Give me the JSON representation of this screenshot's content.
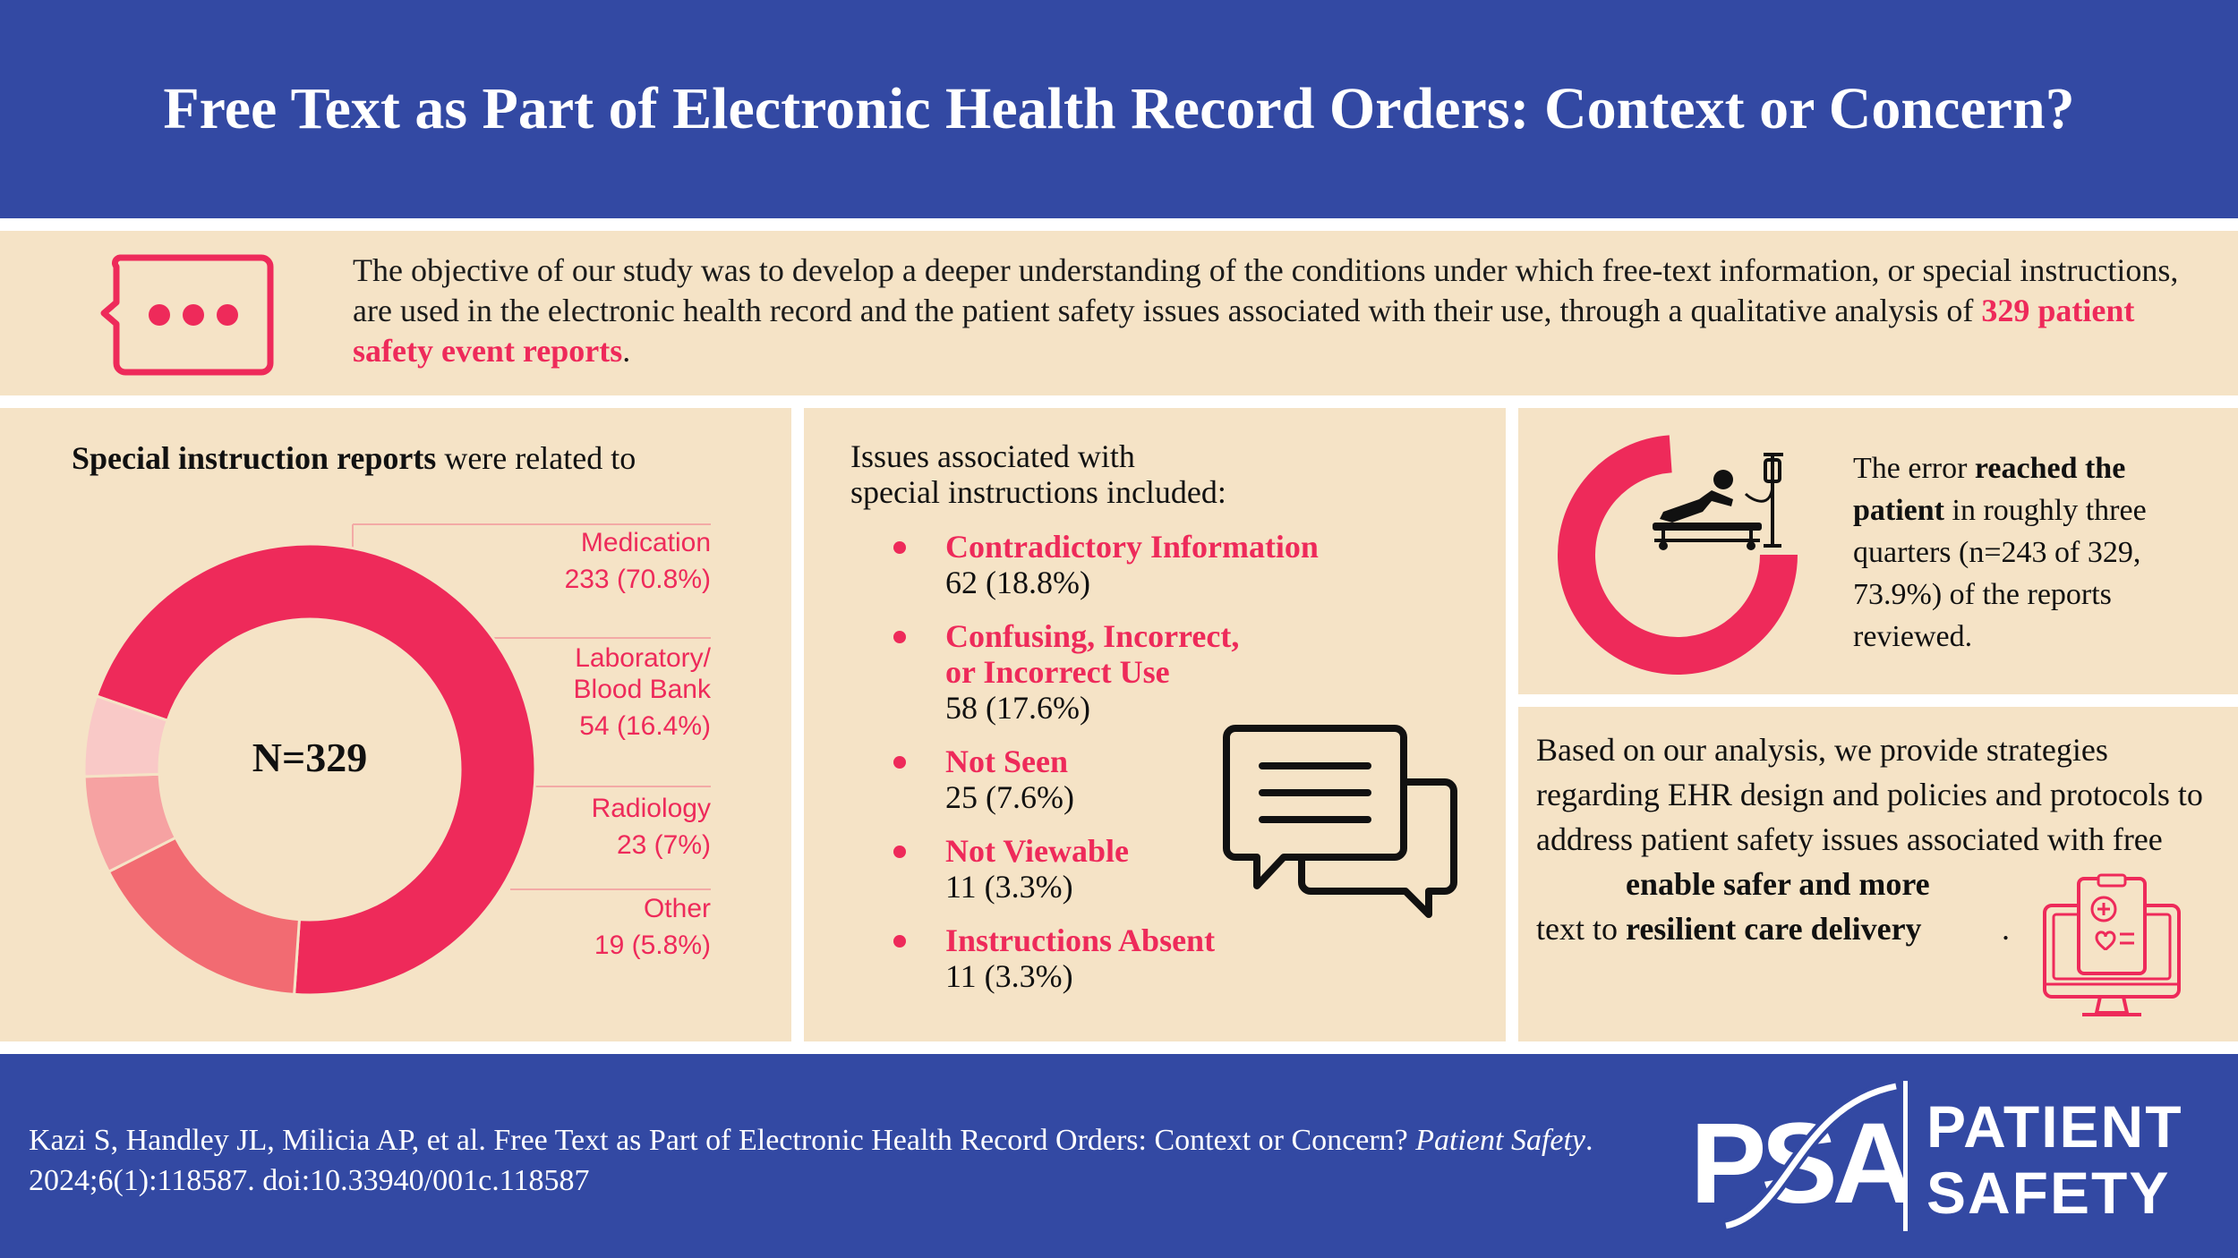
{
  "header": {
    "title": "Free Text as Part of Electronic Health Record Orders: Context or Concern?"
  },
  "objective": {
    "text_before": "The objective of our study was to develop a deeper understanding of the conditions under which free-text information, or special instructions, are used in the electronic health record and the patient safety issues associated with their use, through a qualitative analysis of ",
    "highlight": "329 patient safety event reports",
    "text_after": ".",
    "icon": "chat-bubble-icon"
  },
  "reports_panel": {
    "heading_bold": "Special instruction reports",
    "heading_rest": " were related to",
    "total_label": "N=329",
    "chart_data": {
      "type": "pie",
      "title": "Special instruction reports were related to",
      "center_label": "N=329",
      "categories": [
        "Medication",
        "Laboratory/ Blood Bank",
        "Radiology",
        "Other"
      ],
      "values": [
        233,
        54,
        23,
        19
      ],
      "percent_labels": [
        "233 (70.8%)",
        "54 (16.4%)",
        "23 (7%)",
        "19 (5.8%)"
      ],
      "colors": [
        "#ee2a5a",
        "#f26b72",
        "#f6a2a2",
        "#f9c9c7"
      ],
      "legend": "right"
    },
    "legend": [
      {
        "label": "Medication",
        "value": "233 (70.8%)"
      },
      {
        "label_line1": "Laboratory/",
        "label_line2": "Blood Bank",
        "value": "54 (16.4%)"
      },
      {
        "label": "Radiology",
        "value": "23 (7%)"
      },
      {
        "label": "Other",
        "value": "19 (5.8%)"
      }
    ]
  },
  "issues_panel": {
    "heading_line1": "Issues associated with",
    "heading_line2": "special instructions included:",
    "icon": "speech-bubbles-icon",
    "items": [
      {
        "name_line1": "Contradictory Information",
        "value": "62 (18.8%)"
      },
      {
        "name_line1": "Confusing, Incorrect,",
        "name_line2": "or Incorrect Use",
        "value": "58 (17.6%)"
      },
      {
        "name_line1": "Not Seen",
        "value": "25 (7.6%)"
      },
      {
        "name_line1": "Not Viewable",
        "value": "11 (3.3%)"
      },
      {
        "name_line1": "Instructions Absent",
        "value": "11 (3.3%)"
      }
    ]
  },
  "reached_panel": {
    "text_1": "The error ",
    "bold": "reached the patient",
    "text_2": " in roughly three quarters (n=243 of 329, 73.9%) of the reports reviewed.",
    "icon": "patient-bed-iv-icon",
    "reached_fraction": 0.739
  },
  "strategies_panel": {
    "text": "Based on our analysis, we provide strategies regarding EHR design and policies and protocols to address patient safety issues associated with free text to ",
    "bold": "enable safer and more resilient care delivery",
    "end": ".",
    "icon": "medical-monitor-icon"
  },
  "footer": {
    "citation_1": "Kazi S, Handley JL, Milicia AP, et al. Free Text as Part of Electronic Health Record Orders: Context or Concern? ",
    "citation_journal": "Patient Safety",
    "citation_2": ". 2024;6(1):118587. doi:10.33940/001c.118587",
    "logo_mark": "PSA",
    "logo_line1": "PATIENT",
    "logo_line2": "SAFETY"
  },
  "colors": {
    "navy": "#3349a3",
    "accent": "#ee2a5a",
    "panel": "#f5e3c6"
  }
}
